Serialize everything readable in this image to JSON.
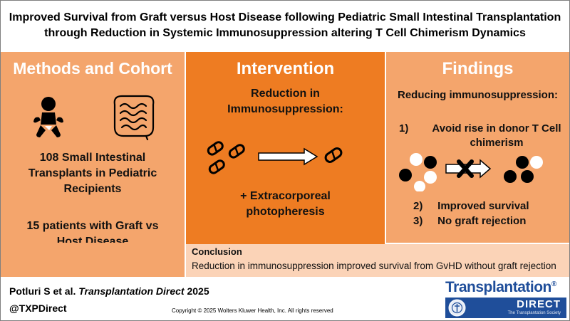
{
  "title": {
    "line1": "Improved Survival from Graft versus Host Disease following Pediatric Small Intestinal Transplantation",
    "line2": "through Reduction in Systemic Immunosuppression altering T Cell Chimerism Dynamics"
  },
  "methods": {
    "heading": "Methods and Cohort",
    "icons": [
      "baby-icon",
      "intestine-icon"
    ],
    "stat1_line1": "108 Small Intestinal",
    "stat1_line2": "Transplants in Pediatric",
    "stat1_line3": "Recipients",
    "stat2_line1": "15 patients with Graft vs",
    "stat2_line2": "Host Disease"
  },
  "intervention": {
    "heading": "Intervention",
    "line1": "Reduction in",
    "line2": "Immunosuppression:",
    "icons": [
      "pill-icon",
      "arrow-right-icon"
    ],
    "extra_line1": "+ Extracorporeal",
    "extra_line2": "photopheresis"
  },
  "findings": {
    "heading": "Findings",
    "subheading": "Reducing immunosuppression:",
    "item1_num": "1)",
    "item1_line1": "Avoid rise in donor T Cell",
    "item1_line2": "chimerism",
    "item2": "2)     Improved survival",
    "item3": "3)     No graft rejection",
    "icons": [
      "cell-dot-icon",
      "blocked-arrow-icon"
    ]
  },
  "conclusion": {
    "heading": "Conclusion",
    "body": "Reduction in immunosuppression improved survival from GvHD without graft rejection"
  },
  "footer": {
    "citation_authors": "Potluri S et al.",
    "citation_journal": "Transplantation Direct",
    "citation_year": "2025",
    "handle": "@TXPDirect",
    "copyright": "Copyright © 2025  Wolters Kluwer Health, Inc. All rights reserved"
  },
  "logo": {
    "wordmark": "Transplantation",
    "registered": "®",
    "sub": "DIRECT",
    "society": "The Transplantation Society"
  },
  "colors": {
    "side_panel": "#f4a56c",
    "mid_panel": "#ee7c22",
    "conclusion": "#fbd3b7",
    "logo_blue": "#1f4e9a"
  }
}
